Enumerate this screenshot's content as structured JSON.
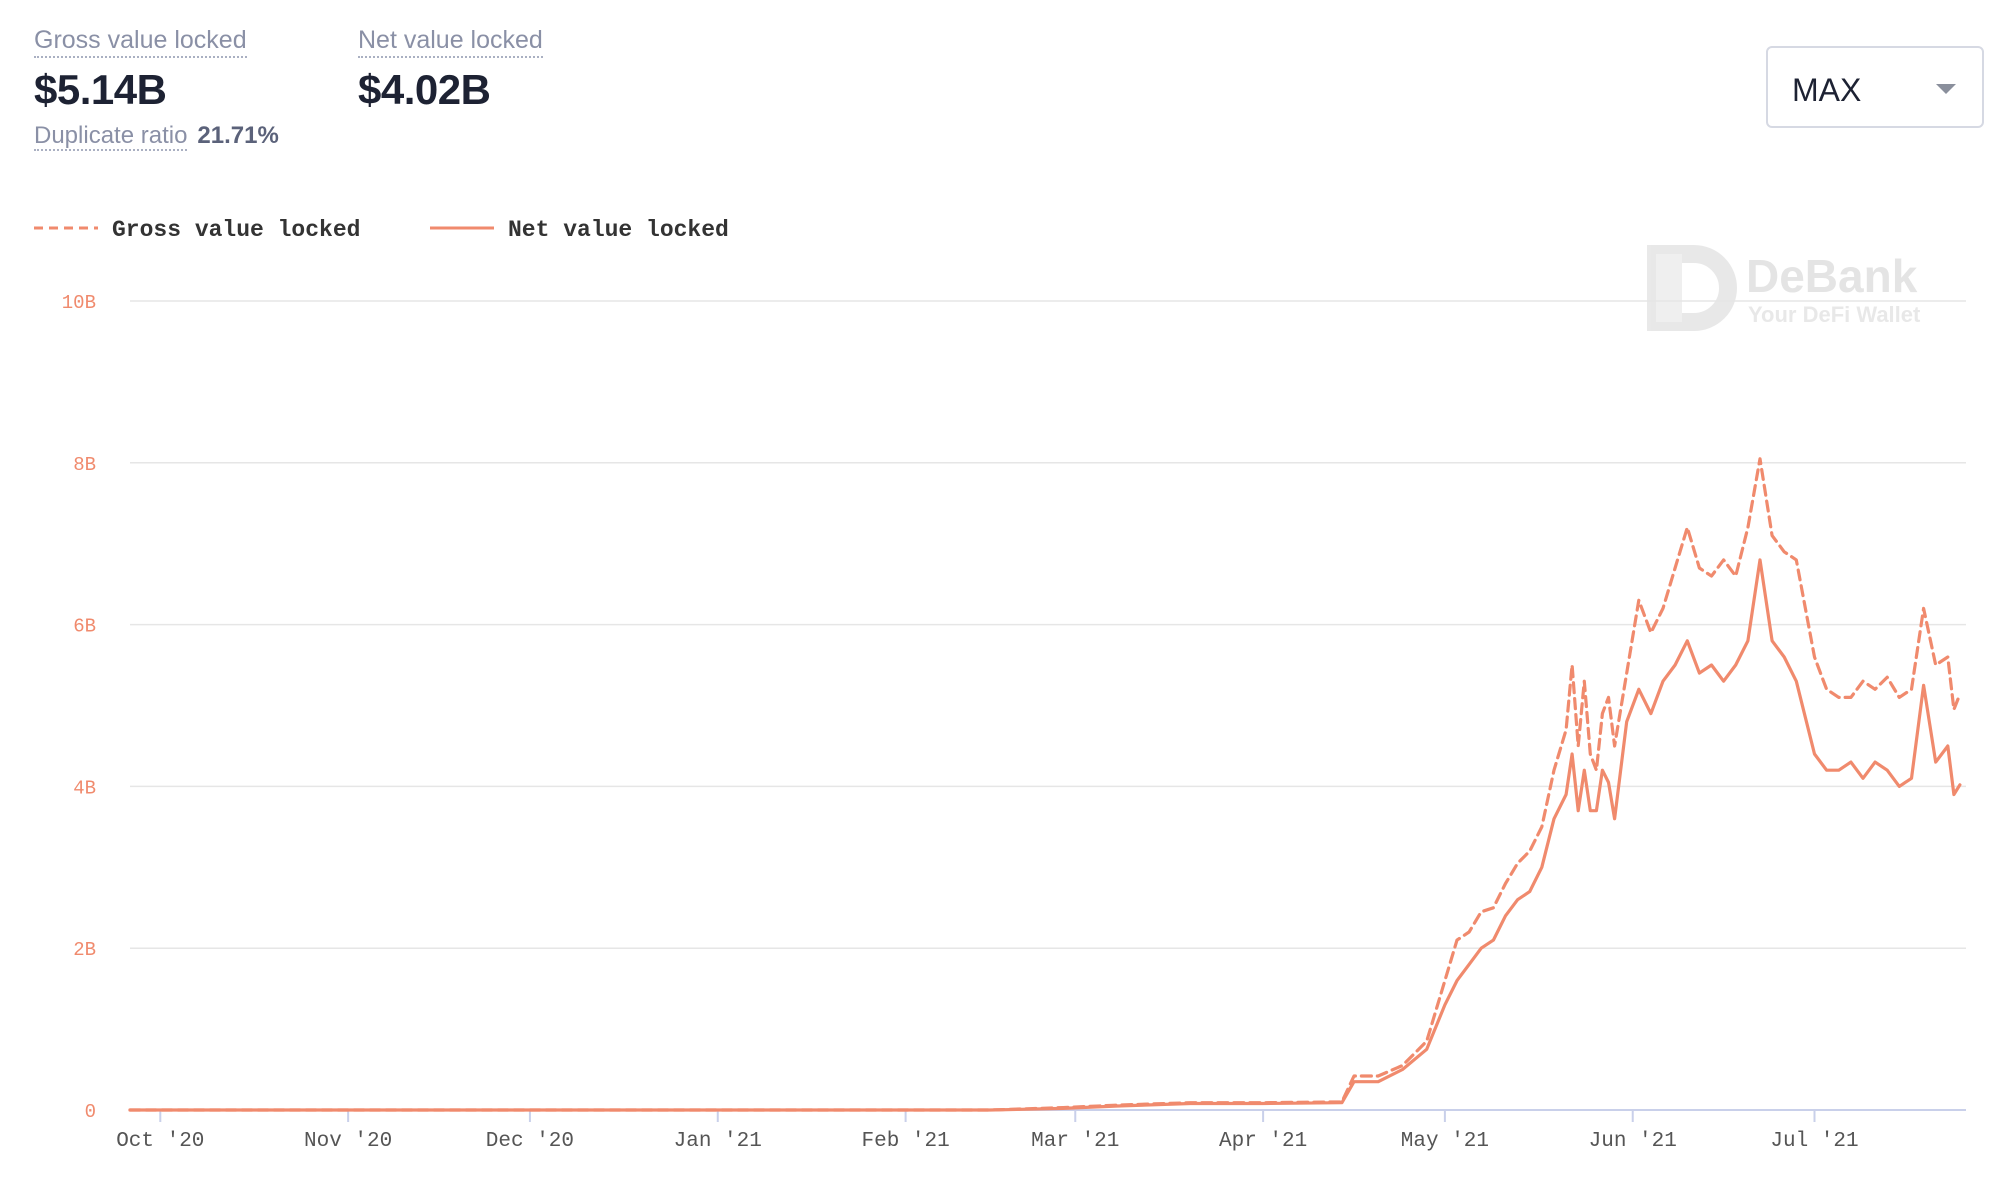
{
  "stats": {
    "gross_label": "Gross value locked",
    "gross_value": "$5.14B",
    "net_label": "Net value locked",
    "net_value": "$4.02B",
    "dup_label": "Duplicate ratio",
    "dup_value": "21.71%"
  },
  "range_select": {
    "value": "MAX"
  },
  "watermark": {
    "brand": "DeBank",
    "tagline": "Your DeFi Wallet"
  },
  "colors": {
    "series": "#f08a6d",
    "axis": "#c9d0ea",
    "grid": "#e6e6e6",
    "tick_text": "#f08a6d",
    "x_tick_text": "#555555"
  },
  "chart_data": {
    "type": "line",
    "legend": {
      "placement": "top-left",
      "entries": [
        "Gross value locked",
        "Net value locked"
      ]
    },
    "x_ticks": [
      "Oct '20",
      "Nov '20",
      "Dec '20",
      "Jan '21",
      "Feb '21",
      "Mar '21",
      "Apr '21",
      "May '21",
      "Jun '21",
      "Jul '21"
    ],
    "y_ticks": [
      "0",
      "2B",
      "4B",
      "6B",
      "8B",
      "10B"
    ],
    "ylim": [
      0,
      10000000000
    ],
    "xlim": [
      "2020-09-26",
      "2021-07-26"
    ],
    "grid": true,
    "series": [
      {
        "name": "Gross value locked",
        "style": "dashed",
        "points": [
          [
            "2020-09-26",
            0
          ],
          [
            "2021-02-15",
            0
          ],
          [
            "2021-02-27",
            0.03
          ],
          [
            "2021-03-08",
            0.06
          ],
          [
            "2021-03-20",
            0.09
          ],
          [
            "2021-04-01",
            0.09
          ],
          [
            "2021-04-14",
            0.1
          ],
          [
            "2021-04-16",
            0.42
          ],
          [
            "2021-04-20",
            0.42
          ],
          [
            "2021-04-24",
            0.55
          ],
          [
            "2021-04-28",
            0.85
          ],
          [
            "2021-05-01",
            1.6
          ],
          [
            "2021-05-03",
            2.1
          ],
          [
            "2021-05-05",
            2.2
          ],
          [
            "2021-05-07",
            2.45
          ],
          [
            "2021-05-09",
            2.5
          ],
          [
            "2021-05-11",
            2.8
          ],
          [
            "2021-05-13",
            3.05
          ],
          [
            "2021-05-15",
            3.2
          ],
          [
            "2021-05-17",
            3.5
          ],
          [
            "2021-05-19",
            4.2
          ],
          [
            "2021-05-21",
            4.7
          ],
          [
            "2021-05-22",
            5.5
          ],
          [
            "2021-05-23",
            4.5
          ],
          [
            "2021-05-24",
            5.3
          ],
          [
            "2021-05-25",
            4.4
          ],
          [
            "2021-05-26",
            4.2
          ],
          [
            "2021-05-27",
            4.9
          ],
          [
            "2021-05-28",
            5.1
          ],
          [
            "2021-05-29",
            4.5
          ],
          [
            "2021-05-31",
            5.4
          ],
          [
            "2021-06-02",
            6.3
          ],
          [
            "2021-06-04",
            5.9
          ],
          [
            "2021-06-06",
            6.2
          ],
          [
            "2021-06-08",
            6.7
          ],
          [
            "2021-06-10",
            7.2
          ],
          [
            "2021-06-12",
            6.7
          ],
          [
            "2021-06-14",
            6.6
          ],
          [
            "2021-06-16",
            6.8
          ],
          [
            "2021-06-18",
            6.6
          ],
          [
            "2021-06-20",
            7.2
          ],
          [
            "2021-06-22",
            8.05
          ],
          [
            "2021-06-24",
            7.1
          ],
          [
            "2021-06-26",
            6.9
          ],
          [
            "2021-06-28",
            6.8
          ],
          [
            "2021-07-01",
            5.6
          ],
          [
            "2021-07-03",
            5.2
          ],
          [
            "2021-07-05",
            5.1
          ],
          [
            "2021-07-07",
            5.1
          ],
          [
            "2021-07-09",
            5.3
          ],
          [
            "2021-07-11",
            5.2
          ],
          [
            "2021-07-13",
            5.35
          ],
          [
            "2021-07-15",
            5.1
          ],
          [
            "2021-07-17",
            5.2
          ],
          [
            "2021-07-19",
            6.2
          ],
          [
            "2021-07-21",
            5.5
          ],
          [
            "2021-07-23",
            5.6
          ],
          [
            "2021-07-24",
            4.95
          ],
          [
            "2021-07-25",
            5.14
          ]
        ]
      },
      {
        "name": "Net value locked",
        "style": "solid",
        "points": [
          [
            "2020-09-26",
            0
          ],
          [
            "2021-02-15",
            0
          ],
          [
            "2021-02-27",
            0.02
          ],
          [
            "2021-03-08",
            0.05
          ],
          [
            "2021-03-20",
            0.08
          ],
          [
            "2021-04-01",
            0.08
          ],
          [
            "2021-04-14",
            0.09
          ],
          [
            "2021-04-16",
            0.35
          ],
          [
            "2021-04-20",
            0.35
          ],
          [
            "2021-04-24",
            0.5
          ],
          [
            "2021-04-28",
            0.75
          ],
          [
            "2021-05-01",
            1.3
          ],
          [
            "2021-05-03",
            1.6
          ],
          [
            "2021-05-05",
            1.8
          ],
          [
            "2021-05-07",
            2.0
          ],
          [
            "2021-05-09",
            2.1
          ],
          [
            "2021-05-11",
            2.4
          ],
          [
            "2021-05-13",
            2.6
          ],
          [
            "2021-05-15",
            2.7
          ],
          [
            "2021-05-17",
            3.0
          ],
          [
            "2021-05-19",
            3.6
          ],
          [
            "2021-05-21",
            3.9
          ],
          [
            "2021-05-22",
            4.4
          ],
          [
            "2021-05-23",
            3.7
          ],
          [
            "2021-05-24",
            4.2
          ],
          [
            "2021-05-25",
            3.7
          ],
          [
            "2021-05-26",
            3.7
          ],
          [
            "2021-05-27",
            4.2
          ],
          [
            "2021-05-28",
            4.05
          ],
          [
            "2021-05-29",
            3.6
          ],
          [
            "2021-05-31",
            4.8
          ],
          [
            "2021-06-02",
            5.2
          ],
          [
            "2021-06-04",
            4.9
          ],
          [
            "2021-06-06",
            5.3
          ],
          [
            "2021-06-08",
            5.5
          ],
          [
            "2021-06-10",
            5.8
          ],
          [
            "2021-06-12",
            5.4
          ],
          [
            "2021-06-14",
            5.5
          ],
          [
            "2021-06-16",
            5.3
          ],
          [
            "2021-06-18",
            5.5
          ],
          [
            "2021-06-20",
            5.8
          ],
          [
            "2021-06-22",
            6.8
          ],
          [
            "2021-06-24",
            5.8
          ],
          [
            "2021-06-26",
            5.6
          ],
          [
            "2021-06-28",
            5.3
          ],
          [
            "2021-07-01",
            4.4
          ],
          [
            "2021-07-03",
            4.2
          ],
          [
            "2021-07-05",
            4.2
          ],
          [
            "2021-07-07",
            4.3
          ],
          [
            "2021-07-09",
            4.1
          ],
          [
            "2021-07-11",
            4.3
          ],
          [
            "2021-07-13",
            4.2
          ],
          [
            "2021-07-15",
            4.0
          ],
          [
            "2021-07-17",
            4.1
          ],
          [
            "2021-07-19",
            5.25
          ],
          [
            "2021-07-21",
            4.3
          ],
          [
            "2021-07-23",
            4.5
          ],
          [
            "2021-07-24",
            3.9
          ],
          [
            "2021-07-25",
            4.02
          ]
        ]
      }
    ]
  }
}
